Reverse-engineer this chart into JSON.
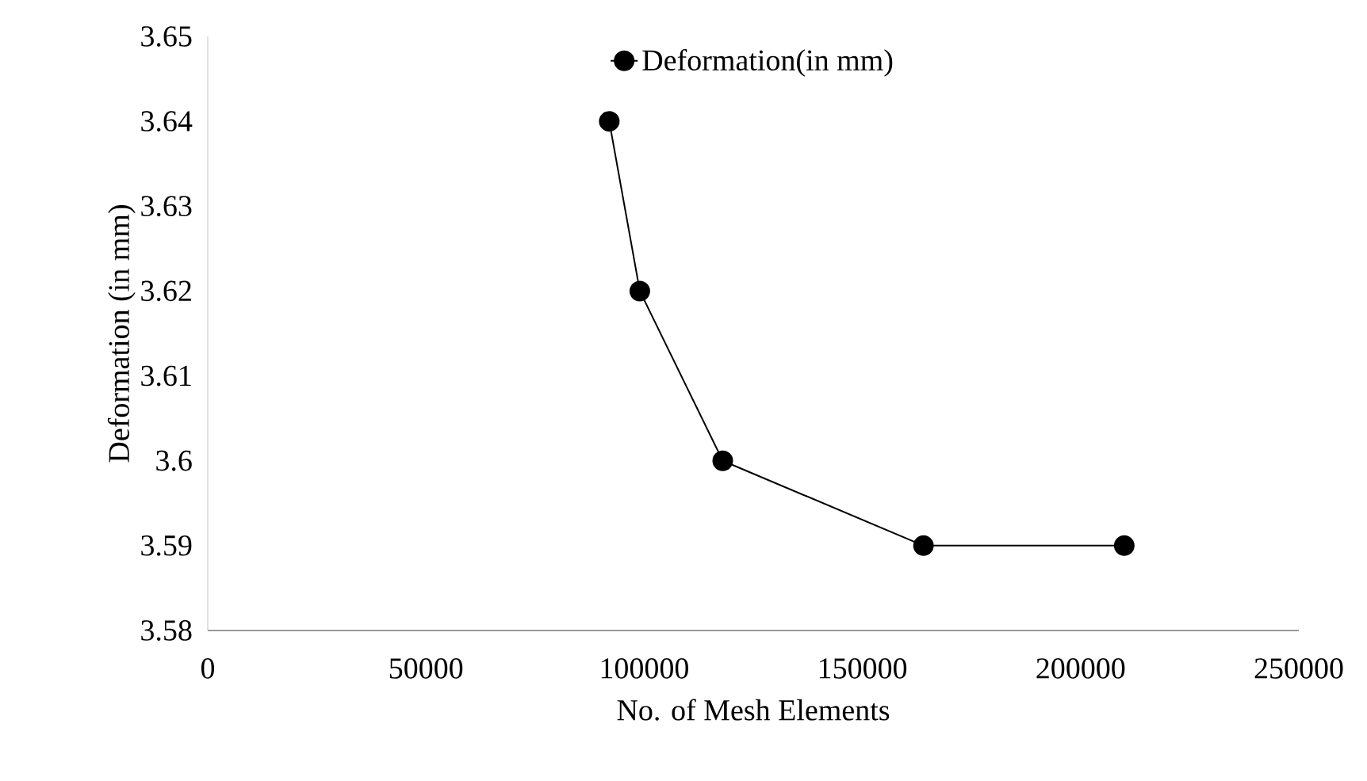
{
  "chart_data": {
    "type": "line",
    "xlabel": "No. of Mesh Elements",
    "ylabel": "Deformation (in mm)",
    "x": [
      92000,
      99000,
      118000,
      164000,
      210000
    ],
    "series": [
      {
        "name": "Deformation(in mm)",
        "color": "#000000",
        "values": [
          3.64,
          3.62,
          3.6,
          3.59,
          3.59
        ]
      }
    ],
    "xlim": [
      0,
      250000
    ],
    "xticks": [
      0,
      50000,
      100000,
      150000,
      200000,
      250000
    ],
    "ylim": [
      3.58,
      3.65
    ],
    "yticks": [
      3.58,
      3.59,
      3.6,
      3.61,
      3.62,
      3.63,
      3.64,
      3.65
    ],
    "marker": "circle",
    "line_style": "solid",
    "grid": false,
    "legend": "top"
  }
}
